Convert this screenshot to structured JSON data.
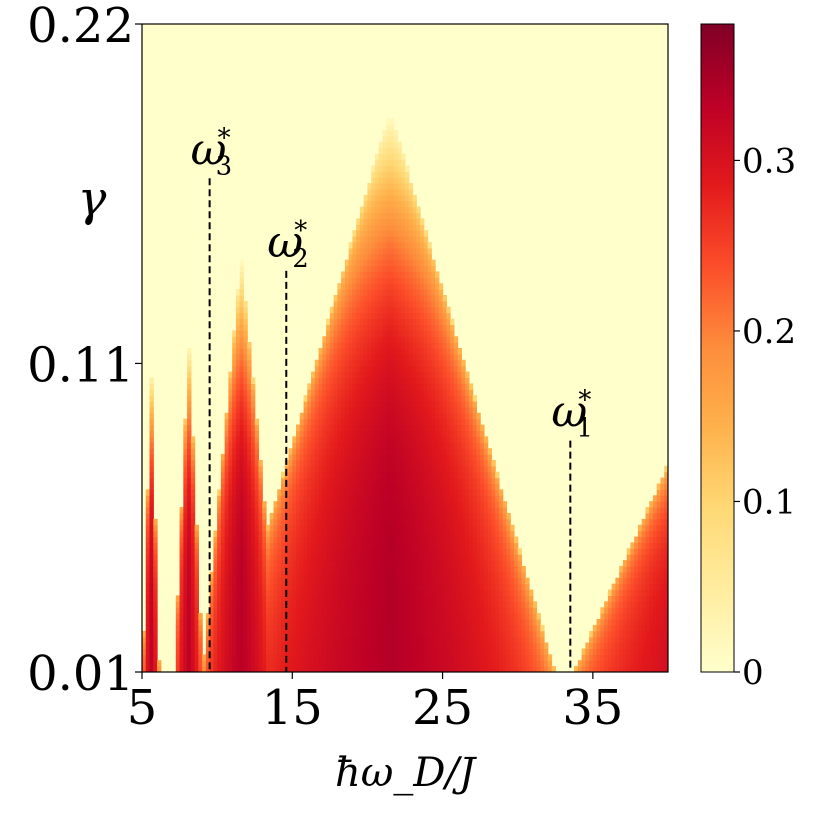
{
  "chart_data": {
    "type": "heatmap",
    "title": "",
    "xlabel": "ħω_D/J",
    "ylabel": "γ",
    "xlim": [
      5,
      40
    ],
    "ylim": [
      0.01,
      0.22
    ],
    "x_ticks": [
      {
        "value": 5,
        "label": "5"
      },
      {
        "value": 15,
        "label": "15"
      },
      {
        "value": 25,
        "label": "25"
      },
      {
        "value": 35,
        "label": "35"
      }
    ],
    "y_ticks": [
      {
        "value": 0.01,
        "label": "0.01"
      },
      {
        "value": 0.11,
        "label": "0.11"
      },
      {
        "value": 0.22,
        "label": "0.22"
      }
    ],
    "colorbar": {
      "range": [
        0,
        0.38
      ],
      "ticks": [
        {
          "value": 0,
          "label": "0"
        },
        {
          "value": 0.1,
          "label": "0.1"
        },
        {
          "value": 0.2,
          "label": "0.2"
        },
        {
          "value": 0.3,
          "label": "0.3"
        }
      ],
      "colormap": "YlOrRd"
    },
    "lobes": [
      {
        "center": 5.6,
        "peak_gamma": 0.11,
        "half_width": 0.55,
        "max_value": 0.33
      },
      {
        "center": 8.1,
        "peak_gamma": 0.118,
        "half_width": 0.95,
        "max_value": 0.33
      },
      {
        "center": 11.6,
        "peak_gamma": 0.145,
        "half_width": 2.6,
        "max_value": 0.335
      },
      {
        "center": 21.5,
        "peak_gamma": 0.192,
        "half_width": 11.0,
        "max_value": 0.34
      },
      {
        "center": 43.5,
        "peak_gamma": 0.115,
        "half_width": 9.8,
        "max_value": 0.33
      }
    ],
    "annotations": [
      {
        "name": "ω",
        "index": "3",
        "sup": "*",
        "x": 9.5,
        "gamma_top": 0.17
      },
      {
        "name": "ω",
        "index": "2",
        "sup": "*",
        "x": 14.6,
        "gamma_top": 0.14
      },
      {
        "name": "ω",
        "index": "1",
        "sup": "*",
        "x": 33.5,
        "gamma_top": 0.085
      }
    ],
    "colors": {
      "low": "#ffffcc",
      "high": "#800026",
      "frame": "#000000"
    }
  }
}
